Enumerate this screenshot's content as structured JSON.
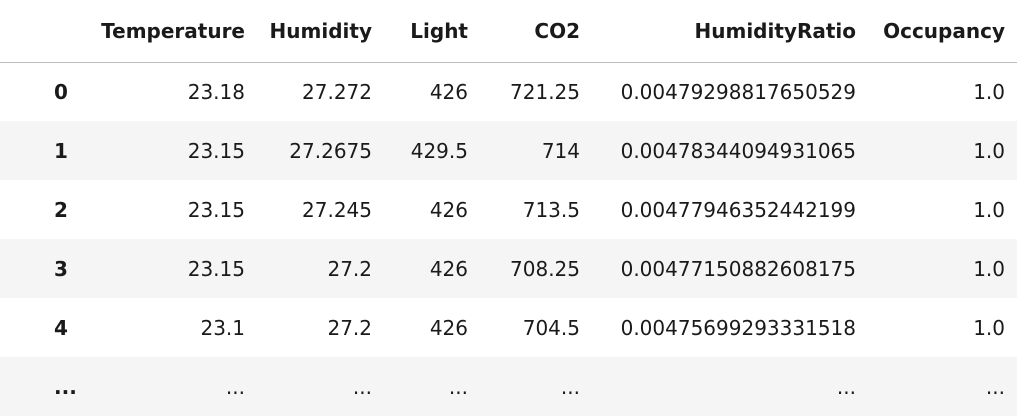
{
  "table": {
    "columns": [
      "Temperature",
      "Humidity",
      "Light",
      "CO2",
      "HumidityRatio",
      "Occupancy"
    ],
    "rows": [
      {
        "index": "0",
        "cells": [
          "23.18",
          "27.272",
          "426",
          "721.25",
          "0.00479298817650529",
          "1.0"
        ]
      },
      {
        "index": "1",
        "cells": [
          "23.15",
          "27.2675",
          "429.5",
          "714",
          "0.00478344094931065",
          "1.0"
        ]
      },
      {
        "index": "2",
        "cells": [
          "23.15",
          "27.245",
          "426",
          "713.5",
          "0.00477946352442199",
          "1.0"
        ]
      },
      {
        "index": "3",
        "cells": [
          "23.15",
          "27.2",
          "426",
          "708.25",
          "0.00477150882608175",
          "1.0"
        ]
      },
      {
        "index": "4",
        "cells": [
          "23.1",
          "27.2",
          "426",
          "704.5",
          "0.00475699293331518",
          "1.0"
        ]
      },
      {
        "index": "...",
        "cells": [
          "...",
          "...",
          "...",
          "...",
          "...",
          "..."
        ]
      }
    ]
  }
}
